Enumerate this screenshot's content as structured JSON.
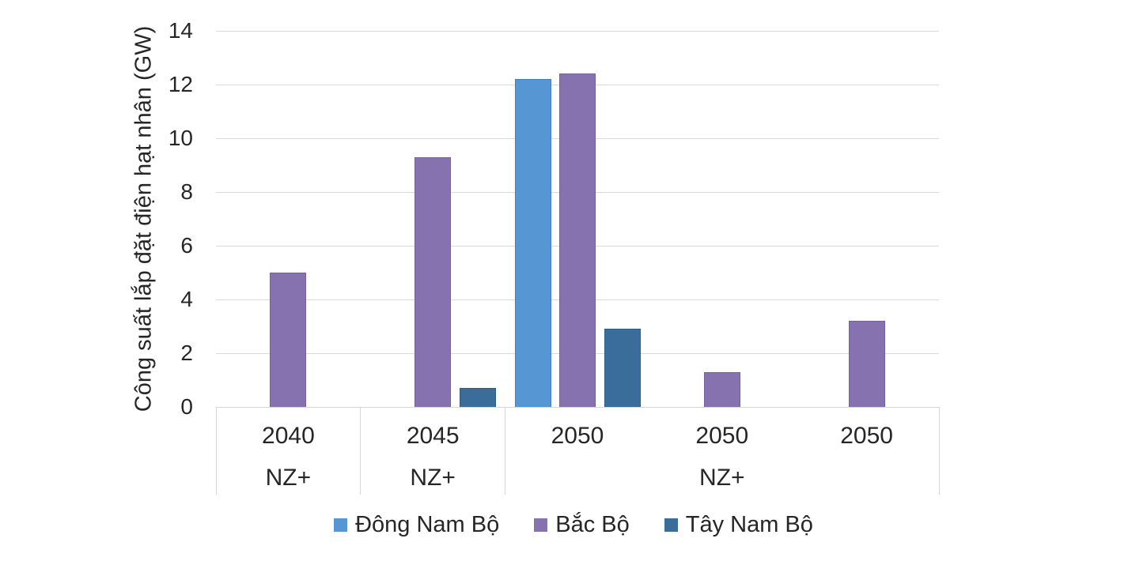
{
  "chart_data": {
    "type": "bar",
    "title": "",
    "ylabel": "Công suất lắp đặt điện hạt nhân (GW)",
    "xlabel": "",
    "ylim": [
      0,
      14
    ],
    "yticks": [
      0,
      2,
      4,
      6,
      8,
      10,
      12,
      14
    ],
    "grid": true,
    "legend_position": "bottom",
    "categories_years": [
      "2040",
      "2045",
      "2050",
      "2050",
      "2050"
    ],
    "category_groups": [
      {
        "label": "NZ+",
        "from": 0,
        "to": 0
      },
      {
        "label": "NZ+",
        "from": 1,
        "to": 1
      },
      {
        "label": "NZ+",
        "from": 2,
        "to": 4
      }
    ],
    "series": [
      {
        "name": "Đông Nam Bộ",
        "color": "#5596D3",
        "border_color": "#447FB8",
        "values": [
          null,
          null,
          12.2,
          null,
          null
        ]
      },
      {
        "name": "Bắc Bộ",
        "color": "#8672AE",
        "border_color": "#75619E",
        "values": [
          5.0,
          9.3,
          12.4,
          1.3,
          3.2
        ]
      },
      {
        "name": "Tây Nam Bộ",
        "color": "#3A6D9A",
        "border_color": "#2C5E8C",
        "values": [
          null,
          0.7,
          2.9,
          null,
          null
        ]
      }
    ],
    "colors": {
      "gridline": "#D9D9D9",
      "axis_box": "#D6D6D6",
      "text": "#262626"
    }
  }
}
